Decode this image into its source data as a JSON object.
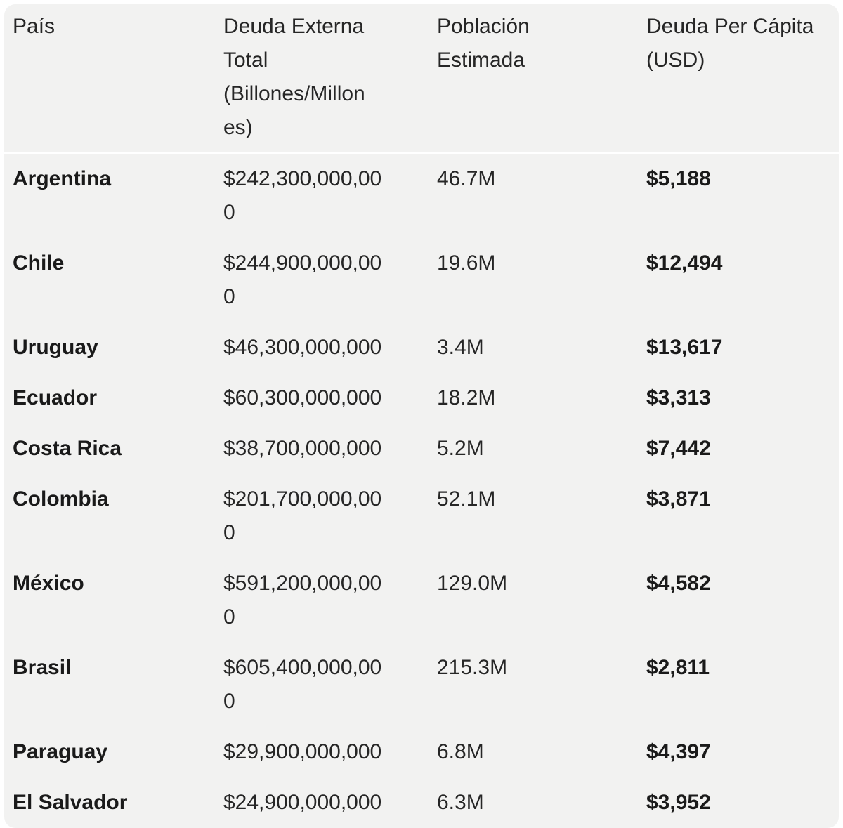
{
  "table": {
    "columns": [
      "País",
      "Deuda Externa Total (Billones/Millones)",
      "Población Estimada",
      "Deuda Per Cápita (USD)"
    ],
    "rows": [
      {
        "country": "Argentina",
        "external_debt": "$242,300,000,000",
        "population": "46.7M",
        "debt_per_capita": "$5,188"
      },
      {
        "country": "Chile",
        "external_debt": "$244,900,000,000",
        "population": "19.6M",
        "debt_per_capita": "$12,494"
      },
      {
        "country": "Uruguay",
        "external_debt": "$46,300,000,000",
        "population": "3.4M",
        "debt_per_capita": "$13,617"
      },
      {
        "country": "Ecuador",
        "external_debt": "$60,300,000,000",
        "population": "18.2M",
        "debt_per_capita": "$3,313"
      },
      {
        "country": "Costa Rica",
        "external_debt": "$38,700,000,000",
        "population": "5.2M",
        "debt_per_capita": "$7,442"
      },
      {
        "country": "Colombia",
        "external_debt": "$201,700,000,000",
        "population": "52.1M",
        "debt_per_capita": "$3,871"
      },
      {
        "country": "México",
        "external_debt": "$591,200,000,000",
        "population": "129.0M",
        "debt_per_capita": "$4,582"
      },
      {
        "country": "Brasil",
        "external_debt": "$605,400,000,000",
        "population": "215.3M",
        "debt_per_capita": "$2,811"
      },
      {
        "country": "Paraguay",
        "external_debt": "$29,900,000,000",
        "population": "6.8M",
        "debt_per_capita": "$4,397"
      },
      {
        "country": "El Salvador",
        "external_debt": "$24,900,000,000",
        "population": "6.3M",
        "debt_per_capita": "$3,952"
      }
    ]
  },
  "colors": {
    "card_bg": "#f2f2f1",
    "divider": "#ffffff",
    "text": "#262626",
    "text_strong": "#1a1a1a",
    "page_bg": "#ffffff"
  }
}
